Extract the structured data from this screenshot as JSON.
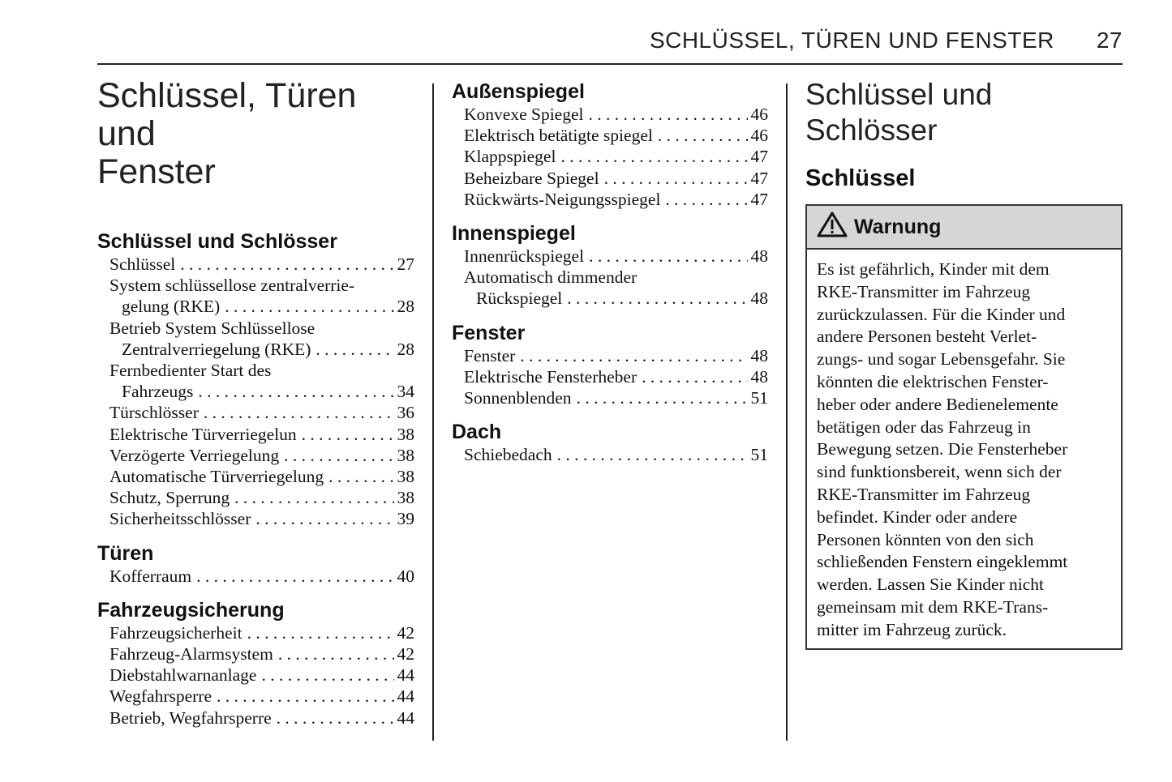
{
  "header": {
    "title": "SCHLÜSSEL, TÜREN UND FENSTER",
    "page_number": "27"
  },
  "chapter_title": [
    "Schlüssel, Türen und",
    "Fenster"
  ],
  "toc_col1": [
    {
      "heading": "Schlüssel und Schlösser",
      "entries": [
        {
          "lines": [
            "Schlüssel"
          ],
          "page": "27"
        },
        {
          "lines": [
            "System schlüssellose zentralverrie-",
            "gelung (RKE)"
          ],
          "page": "28"
        },
        {
          "lines": [
            "Betrieb System Schlüssellose",
            "Zentralverriegelung (RKE)"
          ],
          "page": "28"
        },
        {
          "lines": [
            "Fernbedienter Start des",
            "Fahrzeugs"
          ],
          "page": "34"
        },
        {
          "lines": [
            "Türschlösser"
          ],
          "page": "36"
        },
        {
          "lines": [
            "Elektrische Türverriegelun"
          ],
          "page": "38"
        },
        {
          "lines": [
            "Verzögerte Verriegelung"
          ],
          "page": "38"
        },
        {
          "lines": [
            "Automatische Türverriegelung"
          ],
          "page": "38"
        },
        {
          "lines": [
            "Schutz, Sperrung"
          ],
          "page": "38"
        },
        {
          "lines": [
            "Sicherheitsschlösser"
          ],
          "page": "39"
        }
      ]
    },
    {
      "heading": "Türen",
      "entries": [
        {
          "lines": [
            "Kofferraum"
          ],
          "page": "40"
        }
      ]
    },
    {
      "heading": "Fahrzeugsicherung",
      "entries": [
        {
          "lines": [
            "Fahrzeugsicherheit"
          ],
          "page": "42"
        },
        {
          "lines": [
            "Fahrzeug-Alarmsystem"
          ],
          "page": "42"
        },
        {
          "lines": [
            "Diebstahlwarnanlage"
          ],
          "page": "44"
        },
        {
          "lines": [
            "Wegfahrsperre"
          ],
          "page": "44"
        },
        {
          "lines": [
            "Betrieb, Wegfahrsperre"
          ],
          "page": "44"
        }
      ]
    }
  ],
  "toc_col2": [
    {
      "heading": "Außenspiegel",
      "entries": [
        {
          "lines": [
            "Konvexe Spiegel"
          ],
          "page": "46"
        },
        {
          "lines": [
            "Elektrisch betätigte spiegel"
          ],
          "page": "46"
        },
        {
          "lines": [
            "Klappspiegel"
          ],
          "page": "47"
        },
        {
          "lines": [
            "Beheizbare Spiegel"
          ],
          "page": "47"
        },
        {
          "lines": [
            "Rückwärts-Neigungsspiegel"
          ],
          "page": "47"
        }
      ]
    },
    {
      "heading": "Innenspiegel",
      "entries": [
        {
          "lines": [
            "Innenrückspiegel"
          ],
          "page": "48"
        },
        {
          "lines": [
            "Automatisch dimmender",
            "Rückspiegel"
          ],
          "page": "48"
        }
      ]
    },
    {
      "heading": "Fenster",
      "entries": [
        {
          "lines": [
            "Fenster"
          ],
          "page": "48"
        },
        {
          "lines": [
            "Elektrische Fensterheber"
          ],
          "page": "48"
        },
        {
          "lines": [
            "Sonnenblenden"
          ],
          "page": "51"
        }
      ]
    },
    {
      "heading": "Dach",
      "entries": [
        {
          "lines": [
            "Schiebedach"
          ],
          "page": "51"
        }
      ]
    }
  ],
  "section": {
    "title": "Schlüssel und Schlösser",
    "subtitle": "Schlüssel",
    "warning": {
      "icon": "warning-triangle-icon",
      "label": "Warnung",
      "lines": [
        "Es ist gefährlich, Kinder mit dem",
        "RKE-Transmitter im Fahrzeug",
        "zurückzulassen. Für die Kinder und",
        "andere Personen besteht Verlet-",
        "zungs- und sogar Lebensgefahr. Sie",
        "könnten die elektrischen Fenster-",
        "heber oder andere Bedienelemente",
        "betätigen oder das Fahrzeug in",
        "Bewegung setzen. Die Fensterheber",
        "sind funktionsbereit, wenn sich der",
        "RKE-Transmitter im Fahrzeug",
        "befindet. Kinder oder andere",
        "Personen könnten von den sich",
        "schließenden Fenstern eingeklemmt",
        "werden. Lassen Sie Kinder nicht",
        "gemeinsam mit dem RKE-Trans-",
        "mitter im Fahrzeug zurück."
      ]
    }
  }
}
